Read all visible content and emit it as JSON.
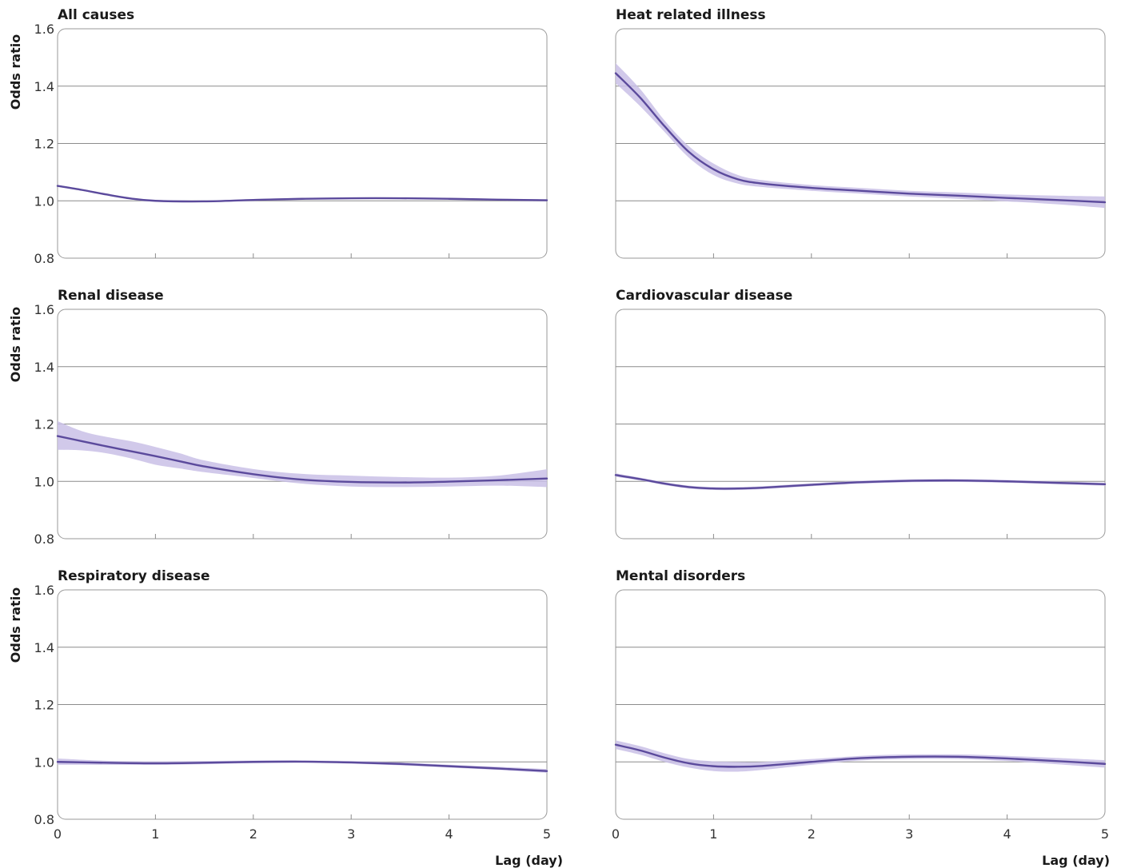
{
  "y_axis_label": "Odds ratio",
  "x_axis_label": "Lag (day)",
  "colors": {
    "line": "#5b4a9c",
    "band": "#c9c0e6",
    "grid": "#8c8c8c"
  },
  "chart_data": [
    {
      "type": "line",
      "title": "All causes",
      "xlabel": "Lag (day)",
      "ylabel": "Odds ratio",
      "xlim": [
        0,
        5
      ],
      "ylim": [
        0.8,
        1.6
      ],
      "yticks": [
        "0.8",
        "1.0",
        "1.2",
        "1.4",
        "1.6"
      ],
      "xticks": [],
      "grid": true,
      "x": [
        0,
        0.25,
        0.5,
        0.75,
        1,
        1.5,
        2,
        2.5,
        3,
        3.5,
        4,
        4.5,
        5
      ],
      "series": [
        {
          "values": [
            1.052,
            1.038,
            1.022,
            1.008,
            1.0,
            0.998,
            1.003,
            1.007,
            1.009,
            1.009,
            1.007,
            1.004,
            1.002
          ],
          "lower": [
            1.049,
            1.035,
            1.019,
            1.005,
            0.997,
            0.995,
            1.0,
            1.004,
            1.006,
            1.006,
            1.004,
            1.001,
            0.999
          ],
          "upper": [
            1.055,
            1.041,
            1.025,
            1.011,
            1.003,
            1.001,
            1.006,
            1.01,
            1.012,
            1.012,
            1.01,
            1.007,
            1.005
          ]
        }
      ]
    },
    {
      "type": "line",
      "title": "Heat related illness",
      "xlabel": "Lag (day)",
      "ylabel": "Odds ratio",
      "xlim": [
        0,
        5
      ],
      "ylim": [
        0.8,
        1.6
      ],
      "yticks": [],
      "xticks": [],
      "grid": true,
      "x": [
        0,
        0.25,
        0.5,
        0.75,
        1,
        1.25,
        1.5,
        2,
        2.5,
        3,
        3.5,
        4,
        4.5,
        5
      ],
      "series": [
        {
          "values": [
            1.445,
            1.36,
            1.26,
            1.17,
            1.11,
            1.075,
            1.06,
            1.045,
            1.035,
            1.025,
            1.018,
            1.01,
            1.003,
            0.995
          ],
          "lower": [
            1.41,
            1.33,
            1.24,
            1.15,
            1.09,
            1.06,
            1.048,
            1.035,
            1.025,
            1.015,
            1.007,
            0.998,
            0.988,
            0.975
          ],
          "upper": [
            1.48,
            1.39,
            1.28,
            1.19,
            1.13,
            1.09,
            1.072,
            1.055,
            1.045,
            1.035,
            1.029,
            1.022,
            1.018,
            1.015
          ]
        }
      ]
    },
    {
      "type": "line",
      "title": "Renal disease",
      "xlabel": "Lag (day)",
      "ylabel": "Odds ratio",
      "xlim": [
        0,
        5
      ],
      "ylim": [
        0.8,
        1.6
      ],
      "yticks": [
        "0.8",
        "1.0",
        "1.2",
        "1.4",
        "1.6"
      ],
      "xticks": [],
      "grid": true,
      "x": [
        0,
        0.25,
        0.5,
        0.75,
        1,
        1.25,
        1.5,
        2,
        2.5,
        3,
        3.5,
        4,
        4.5,
        5
      ],
      "series": [
        {
          "values": [
            1.158,
            1.14,
            1.122,
            1.105,
            1.088,
            1.07,
            1.052,
            1.025,
            1.006,
            0.998,
            0.996,
            0.999,
            1.004,
            1.01
          ],
          "lower": [
            1.11,
            1.108,
            1.098,
            1.08,
            1.058,
            1.045,
            1.032,
            1.012,
            0.992,
            0.982,
            0.98,
            0.982,
            0.985,
            0.98
          ],
          "upper": [
            1.21,
            1.175,
            1.155,
            1.14,
            1.12,
            1.098,
            1.073,
            1.043,
            1.026,
            1.02,
            1.015,
            1.013,
            1.02,
            1.042
          ]
        }
      ]
    },
    {
      "type": "line",
      "title": "Cardiovascular disease",
      "xlabel": "Lag (day)",
      "ylabel": "Odds ratio",
      "xlim": [
        0,
        5
      ],
      "ylim": [
        0.8,
        1.6
      ],
      "yticks": [],
      "xticks": [],
      "grid": true,
      "x": [
        0,
        0.25,
        0.5,
        0.75,
        1,
        1.25,
        1.5,
        2,
        2.5,
        3,
        3.5,
        4,
        4.5,
        5
      ],
      "series": [
        {
          "values": [
            1.022,
            1.008,
            0.992,
            0.98,
            0.975,
            0.975,
            0.978,
            0.988,
            0.997,
            1.002,
            1.003,
            1.0,
            0.995,
            0.99
          ],
          "lower": [
            1.016,
            1.003,
            0.987,
            0.975,
            0.97,
            0.97,
            0.973,
            0.983,
            0.992,
            0.997,
            0.998,
            0.995,
            0.99,
            0.985
          ],
          "upper": [
            1.028,
            1.013,
            0.997,
            0.985,
            0.98,
            0.98,
            0.983,
            0.993,
            1.002,
            1.007,
            1.008,
            1.005,
            1.0,
            0.995
          ]
        }
      ]
    },
    {
      "type": "line",
      "title": "Respiratory disease",
      "xlabel": "Lag (day)",
      "ylabel": "Odds ratio",
      "xlim": [
        0,
        5
      ],
      "ylim": [
        0.8,
        1.6
      ],
      "yticks": [
        "0.8",
        "1.0",
        "1.2",
        "1.4",
        "1.6"
      ],
      "xticks": [
        "0",
        "1",
        "2",
        "3",
        "4",
        "5"
      ],
      "grid": true,
      "x": [
        0,
        0.5,
        1,
        1.5,
        2,
        2.5,
        3,
        3.5,
        4,
        4.5,
        5
      ],
      "series": [
        {
          "values": [
            1.0,
            0.997,
            0.995,
            0.997,
            1.0,
            1.001,
            0.998,
            0.993,
            0.985,
            0.977,
            0.968
          ],
          "lower": [
            0.99,
            0.99,
            0.99,
            0.992,
            0.996,
            0.997,
            0.994,
            0.988,
            0.98,
            0.972,
            0.962
          ],
          "upper": [
            1.012,
            1.004,
            1.002,
            1.003,
            1.005,
            1.005,
            1.003,
            0.998,
            0.99,
            0.983,
            0.975
          ]
        }
      ]
    },
    {
      "type": "line",
      "title": "Mental disorders",
      "xlabel": "Lag (day)",
      "ylabel": "Odds ratio",
      "xlim": [
        0,
        5
      ],
      "ylim": [
        0.8,
        1.6
      ],
      "yticks": [],
      "xticks": [
        "0",
        "1",
        "2",
        "3",
        "4",
        "5"
      ],
      "grid": true,
      "x": [
        0,
        0.25,
        0.5,
        0.75,
        1,
        1.25,
        1.5,
        2,
        2.5,
        3,
        3.5,
        4,
        4.5,
        5
      ],
      "series": [
        {
          "values": [
            1.06,
            1.04,
            1.015,
            0.995,
            0.985,
            0.983,
            0.986,
            1.0,
            1.013,
            1.018,
            1.018,
            1.012,
            1.003,
            0.993
          ],
          "lower": [
            1.045,
            1.025,
            1.0,
            0.98,
            0.968,
            0.966,
            0.972,
            0.99,
            1.005,
            1.01,
            1.01,
            1.003,
            0.992,
            0.98
          ],
          "upper": [
            1.075,
            1.055,
            1.03,
            1.01,
            1.002,
            1.0,
            1.0,
            1.01,
            1.021,
            1.026,
            1.026,
            1.021,
            1.014,
            1.006
          ]
        }
      ]
    }
  ]
}
